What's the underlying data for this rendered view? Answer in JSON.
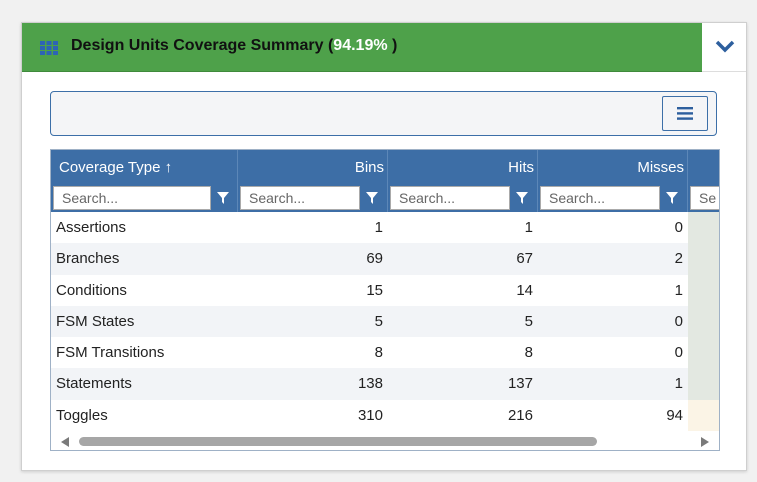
{
  "header": {
    "title": "Design Units Coverage Summary (",
    "percent": "94.19%",
    "title_close": ")",
    "icon": "grid-icon",
    "color": "#4ea14a",
    "collapse_icon": "chevron-down-icon"
  },
  "toolbar": {
    "menu_icon": "hamburger-menu-icon"
  },
  "grid": {
    "columns": [
      {
        "label": "Coverage Type ↑",
        "placeholder": "Search..."
      },
      {
        "label": "Bins",
        "placeholder": "Search..."
      },
      {
        "label": "Hits",
        "placeholder": "Search..."
      },
      {
        "label": "Misses",
        "placeholder": "Search..."
      },
      {
        "label": "",
        "placeholder": "Se"
      }
    ],
    "rows": [
      {
        "type": "Assertions",
        "bins": "1",
        "hits": "1",
        "misses": "0"
      },
      {
        "type": "Branches",
        "bins": "69",
        "hits": "67",
        "misses": "2"
      },
      {
        "type": "Conditions",
        "bins": "15",
        "hits": "14",
        "misses": "1"
      },
      {
        "type": "FSM States",
        "bins": "5",
        "hits": "5",
        "misses": "0"
      },
      {
        "type": "FSM Transitions",
        "bins": "8",
        "hits": "8",
        "misses": "0"
      },
      {
        "type": "Statements",
        "bins": "138",
        "hits": "137",
        "misses": "1"
      },
      {
        "type": "Toggles",
        "bins": "310",
        "hits": "216",
        "misses": "94"
      }
    ],
    "header_color": "#3d6ea6"
  }
}
